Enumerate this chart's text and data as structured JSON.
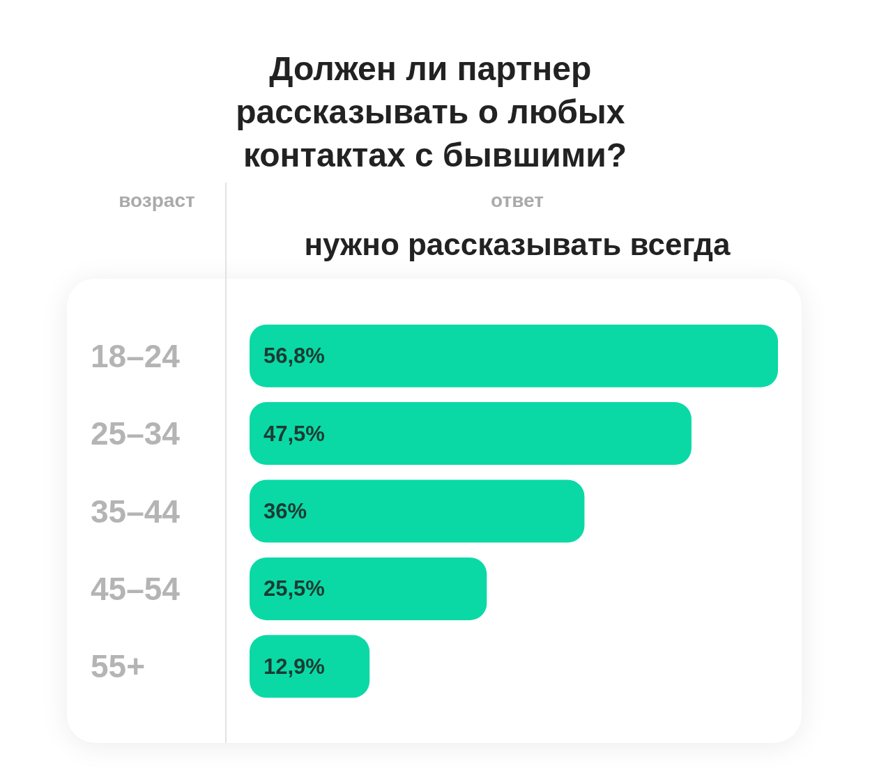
{
  "chart_data": {
    "type": "bar",
    "orientation": "horizontal",
    "title": "Должен ли партнер рассказывать о любых контактах с бывшими?",
    "annotations": [
      "возраст",
      "ответ"
    ],
    "categories": [
      "18–24",
      "25–34",
      "35–44",
      "45–54",
      "55+"
    ],
    "series": [
      {
        "name": "нужно рассказывать всегда",
        "color": "#0ad9a5",
        "values": [
          56.8,
          47.5,
          36,
          25.5,
          12.9
        ],
        "value_labels": [
          "56,8%",
          "47,5%",
          "36%",
          "25,5%",
          "12,9%"
        ]
      }
    ],
    "legend": false
  }
}
